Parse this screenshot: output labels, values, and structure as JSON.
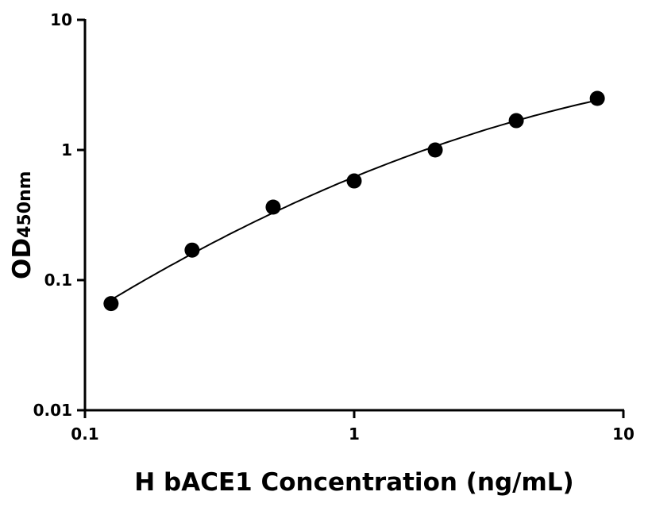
{
  "chart_data": {
    "type": "scatter",
    "title": "",
    "xlabel": "H bACE1 Concentration (ng/mL)",
    "ylabel": "OD",
    "ylabel_subscript": "450nm",
    "xscale": "log",
    "yscale": "log",
    "xlim": [
      0.1,
      10
    ],
    "ylim": [
      0.01,
      10
    ],
    "xticks": [
      {
        "v": 0.1,
        "label": "0.1"
      },
      {
        "v": 1,
        "label": "1"
      },
      {
        "v": 10,
        "label": "10"
      }
    ],
    "yticks": [
      {
        "v": 0.01,
        "label": "0.01"
      },
      {
        "v": 0.1,
        "label": "0.1"
      },
      {
        "v": 1,
        "label": "1"
      },
      {
        "v": 10,
        "label": "10"
      }
    ],
    "grid": false,
    "series": [
      {
        "x": [
          0.125,
          0.25,
          0.5,
          1,
          2,
          4,
          8
        ],
        "y": [
          0.066,
          0.17,
          0.364,
          0.578,
          1.0,
          1.68,
          2.49
        ],
        "color": "#000000",
        "fit_curve": true
      }
    ]
  }
}
